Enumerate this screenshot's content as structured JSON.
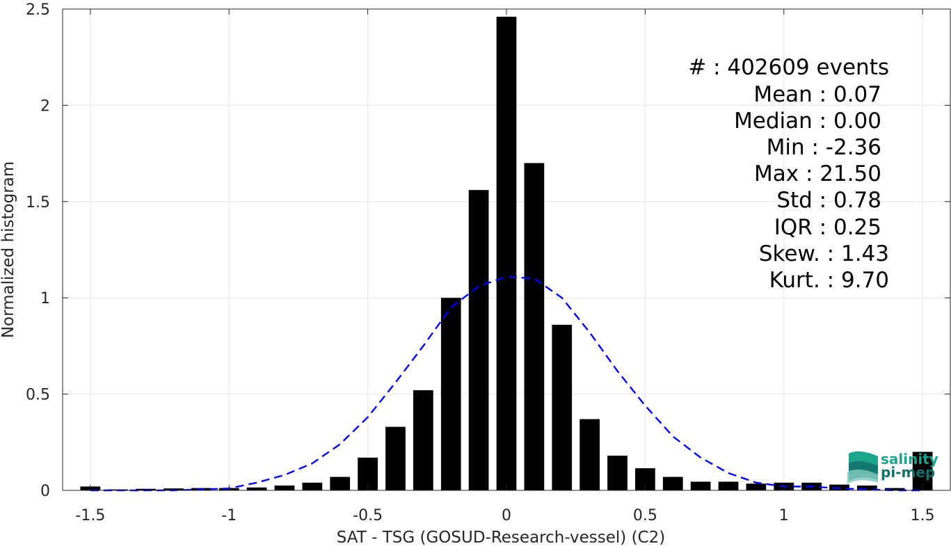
{
  "chart_data": {
    "type": "bar",
    "xlabel": "SAT - TSG (GOSUD-Research-vessel) (C2)",
    "ylabel": "Normalized histogram",
    "xlim": [
      -1.6,
      1.6
    ],
    "ylim": [
      0,
      2.5
    ],
    "xticks": [
      -1.5,
      -1,
      -0.5,
      0,
      0.5,
      1,
      1.5
    ],
    "xtick_labels": [
      "-1.5",
      "-1",
      "-0.5",
      "0",
      "0.5",
      "1",
      "1.5"
    ],
    "yticks": [
      0,
      0.5,
      1,
      1.5,
      2,
      2.5
    ],
    "ytick_labels": [
      "0",
      "0.5",
      "1",
      "1.5",
      "2",
      "2.5"
    ],
    "grid": true,
    "bar_color": "#000000",
    "bars": {
      "x": [
        -1.5,
        -1.4,
        -1.3,
        -1.2,
        -1.1,
        -1.0,
        -0.9,
        -0.8,
        -0.7,
        -0.6,
        -0.5,
        -0.4,
        -0.3,
        -0.2,
        -0.1,
        0.0,
        0.1,
        0.2,
        0.3,
        0.4,
        0.5,
        0.6,
        0.7,
        0.8,
        0.9,
        1.0,
        1.1,
        1.2,
        1.3,
        1.4,
        1.5
      ],
      "values": [
        0.02,
        0.005,
        0.008,
        0.01,
        0.012,
        0.012,
        0.015,
        0.025,
        0.04,
        0.07,
        0.17,
        0.33,
        0.52,
        1.0,
        1.56,
        2.46,
        1.7,
        0.86,
        0.37,
        0.18,
        0.115,
        0.07,
        0.045,
        0.045,
        0.035,
        0.04,
        0.04,
        0.03,
        0.025,
        0.012,
        0.2
      ]
    },
    "fit_curve": {
      "style": "dashed",
      "color": "#0000ff",
      "x": [
        -1.5,
        -1.4,
        -1.3,
        -1.2,
        -1.1,
        -1.0,
        -0.9,
        -0.8,
        -0.7,
        -0.6,
        -0.5,
        -0.4,
        -0.3,
        -0.2,
        -0.1,
        0.0,
        0.1,
        0.2,
        0.3,
        0.4,
        0.5,
        0.6,
        0.7,
        0.8,
        0.9,
        1.0,
        1.1,
        1.2,
        1.3,
        1.4,
        1.5
      ],
      "values": [
        0.0,
        0.0,
        0.0,
        0.0,
        0.005,
        0.01,
        0.04,
        0.08,
        0.14,
        0.24,
        0.38,
        0.56,
        0.75,
        0.95,
        1.06,
        1.11,
        1.1,
        1.0,
        0.82,
        0.62,
        0.44,
        0.28,
        0.17,
        0.09,
        0.04,
        0.02,
        0.02,
        0.01,
        0.005,
        0.0,
        0.0
      ]
    },
    "annotations": [
      "#  : 402609 events",
      "Mean : 0.07",
      "Median : 0.00",
      "Min : -2.36",
      "Max : 21.50",
      "Std : 0.78",
      "IQR : 0.25",
      "Skew. : 1.43",
      "Kurt. : 9.70"
    ]
  },
  "logo": {
    "line1": "salinity",
    "line2": "pi-mep",
    "color1": "#1aa58c",
    "color2": "#14706a"
  }
}
